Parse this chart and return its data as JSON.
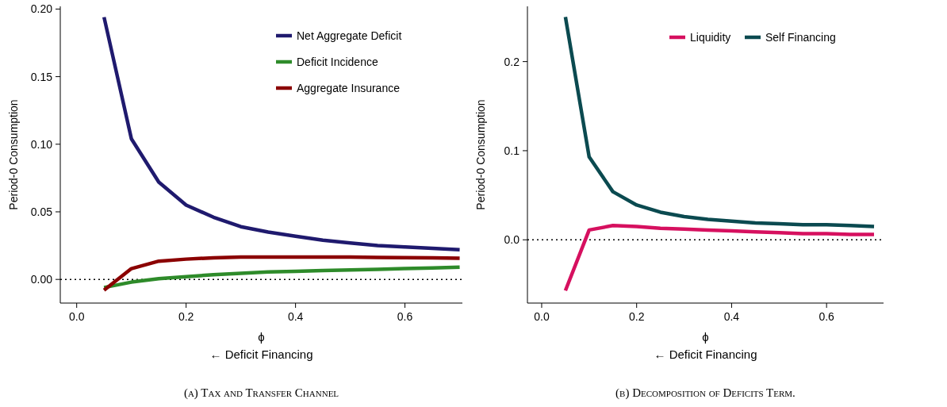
{
  "chart_data": [
    {
      "type": "line",
      "title": "(a) Tax and Transfer Channel",
      "xlabel": "ϕ",
      "ylabel": "Period-0 Consumption",
      "annotations": [
        "← Deficit Financing"
      ],
      "x": [
        0.05,
        0.1,
        0.15,
        0.2,
        0.25,
        0.3,
        0.35,
        0.4,
        0.45,
        0.5,
        0.55,
        0.6,
        0.65,
        0.7
      ],
      "xlim": [
        -0.03,
        0.705
      ],
      "xticks": [
        {
          "value": 0,
          "label": "0.0"
        },
        {
          "value": 0.2,
          "label": "0.2"
        },
        {
          "value": 0.4,
          "label": "0.4"
        },
        {
          "value": 0.6,
          "label": "0.6"
        }
      ],
      "ylim": [
        -0.0175,
        0.202
      ],
      "yticks": [
        {
          "value": 0,
          "label": "0.00"
        },
        {
          "value": 0.05,
          "label": "0.05"
        },
        {
          "value": 0.1,
          "label": "0.10"
        },
        {
          "value": 0.15,
          "label": "0.15"
        },
        {
          "value": 0.2,
          "label": "0.20"
        }
      ],
      "grid": false,
      "legend": "top right",
      "ref_lines": [
        {
          "axis": "y",
          "value": 0,
          "line_style": "dotted",
          "color": "#000000"
        }
      ],
      "series": [
        {
          "name": "Net Aggregate Deficit",
          "color": "#1f1a6e",
          "values": [
            0.194,
            0.104,
            0.072,
            0.055,
            0.046,
            0.039,
            0.035,
            0.032,
            0.029,
            0.027,
            0.025,
            0.024,
            0.023,
            0.022
          ]
        },
        {
          "name": "Deficit Incidence",
          "color": "#2e8b2a",
          "values": [
            -0.006,
            -0.002,
            0.0005,
            0.002,
            0.0035,
            0.0045,
            0.0055,
            0.006,
            0.0065,
            0.007,
            0.0075,
            0.008,
            0.0085,
            0.009
          ]
        },
        {
          "name": "Aggregate Insurance",
          "color": "#8b0000",
          "values": [
            -0.008,
            0.008,
            0.0135,
            0.015,
            0.016,
            0.0165,
            0.0166,
            0.0166,
            0.0166,
            0.0165,
            0.0163,
            0.0161,
            0.016,
            0.0157
          ]
        }
      ]
    },
    {
      "type": "line",
      "title": "(b) Decomposition of Deficits Term.",
      "xlabel": "ϕ",
      "ylabel": "Period-0 Consumption",
      "annotations": [
        "← Deficit Financing"
      ],
      "x": [
        0.05,
        0.1,
        0.15,
        0.2,
        0.25,
        0.3,
        0.35,
        0.4,
        0.45,
        0.5,
        0.55,
        0.6,
        0.65,
        0.7
      ],
      "xlim": [
        -0.03,
        0.72
      ],
      "xticks": [
        {
          "value": 0,
          "label": "0.0"
        },
        {
          "value": 0.2,
          "label": "0.2"
        },
        {
          "value": 0.4,
          "label": "0.4"
        },
        {
          "value": 0.6,
          "label": "0.6"
        }
      ],
      "ylim": [
        -0.071,
        0.262
      ],
      "yticks": [
        {
          "value": 0,
          "label": "0.0"
        },
        {
          "value": 0.1,
          "label": "0.1"
        },
        {
          "value": 0.2,
          "label": "0.2"
        }
      ],
      "grid": false,
      "legend": "top right",
      "ref_lines": [
        {
          "axis": "y",
          "value": 0,
          "line_style": "dotted",
          "color": "#000000"
        }
      ],
      "series": [
        {
          "name": "Liquidity",
          "color": "#d6105f",
          "values": [
            -0.057,
            0.011,
            0.016,
            0.015,
            0.013,
            0.012,
            0.011,
            0.01,
            0.009,
            0.008,
            0.007,
            0.007,
            0.006,
            0.006
          ]
        },
        {
          "name": "Self Financing",
          "color": "#0b4a50",
          "values": [
            0.25,
            0.093,
            0.054,
            0.039,
            0.031,
            0.026,
            0.023,
            0.021,
            0.019,
            0.018,
            0.017,
            0.017,
            0.016,
            0.015
          ]
        }
      ]
    }
  ]
}
